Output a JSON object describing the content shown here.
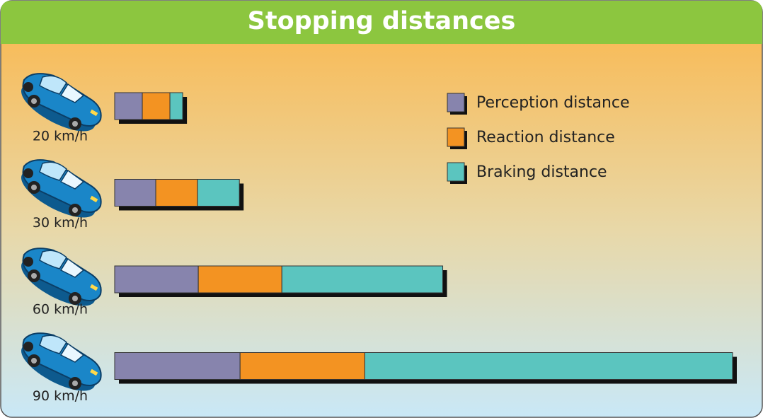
{
  "chart_data": {
    "type": "bar",
    "orientation": "horizontal",
    "stacked": true,
    "title": "Stopping distances",
    "categories": [
      "20 km/h",
      "30 km/h",
      "60 km/h",
      "90 km/h"
    ],
    "series": [
      {
        "name": "Perception distance",
        "color": "#8784ad",
        "values": [
          39,
          58,
          118,
          177
        ]
      },
      {
        "name": "Reaction distance",
        "color": "#f39322",
        "values": [
          39,
          59,
          118,
          176
        ]
      },
      {
        "name": "Braking distance",
        "color": "#5bc5bf",
        "values": [
          18,
          59,
          227,
          519
        ]
      }
    ]
  }
}
